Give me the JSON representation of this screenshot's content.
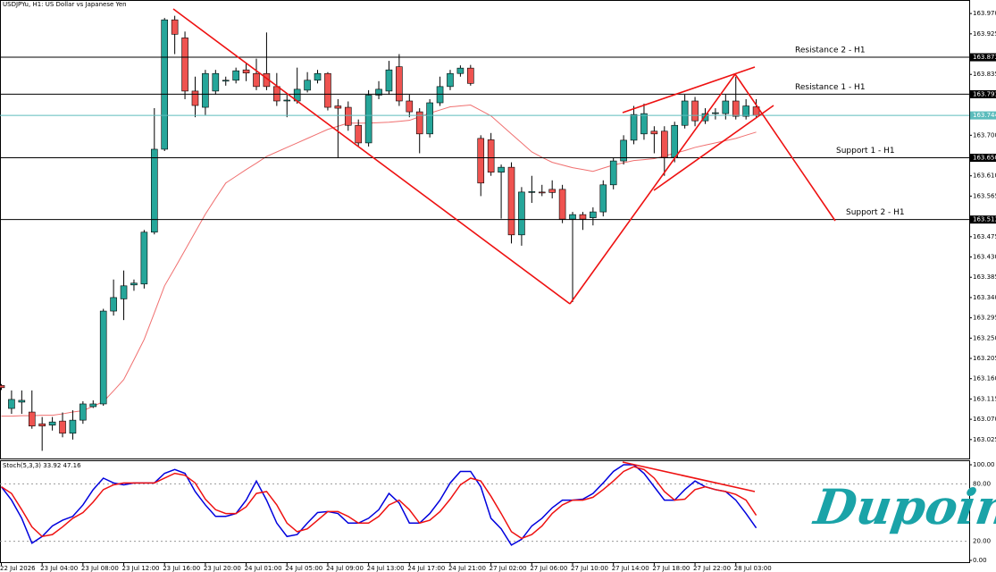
{
  "chart_data": [
    {
      "type": "candlestick",
      "title": "USDJPYu, H1:  US Dollar vs Japanese Yen",
      "categories": [
        "22 Jul 2026",
        null,
        null,
        null,
        "23 Jul 04:00",
        null,
        null,
        null,
        "23 Jul 08:00",
        null,
        null,
        null,
        "23 Jul 12:00",
        null,
        null,
        null,
        "23 Jul 16:00",
        null,
        null,
        null,
        "23 Jul 20:00",
        null,
        null,
        null,
        "24 Jul 01:00",
        null,
        null,
        null,
        "24 Jul 05:00",
        null,
        null,
        null,
        "24 Jul 09:00",
        null,
        null,
        null,
        "24 Jul 13:00",
        null,
        null,
        null,
        "24 Jul 17:00",
        null,
        null,
        null,
        "24 Jul 21:00",
        null,
        null,
        null,
        "27 Jul 02:00",
        null,
        null,
        null,
        "27 Jul 06:00",
        null,
        null,
        null,
        "27 Jul 10:00",
        null,
        null,
        null,
        "27 Jul 14:00",
        null,
        null,
        null,
        "27 Jul 18:00",
        null,
        null,
        null,
        "27 Jul 22:00",
        null,
        null,
        null,
        "28 Jul 03:00",
        null,
        null
      ],
      "open": [
        163.145,
        163.094,
        163.108,
        163.086,
        163.06,
        163.057,
        163.066,
        163.039,
        163.068,
        163.098,
        163.104,
        163.31,
        163.337,
        163.368,
        163.37,
        163.485,
        163.669,
        163.956,
        163.916,
        163.798,
        163.762,
        163.798,
        163.82,
        163.822,
        163.845,
        163.837,
        163.837,
        163.808,
        163.776,
        163.776,
        163.8,
        163.822,
        163.837,
        163.765,
        163.762,
        163.722,
        163.683,
        163.789,
        163.798,
        163.852,
        163.776,
        163.752,
        163.703,
        163.772,
        163.808,
        163.837,
        163.849,
        163.693,
        163.69,
        163.618,
        163.629,
        163.479,
        163.574,
        163.574,
        163.58,
        163.58,
        163.514,
        163.524,
        163.517,
        163.53,
        163.59,
        163.643,
        163.689,
        163.703,
        163.709,
        163.709,
        163.651,
        163.722,
        163.776,
        163.732,
        163.748,
        163.748,
        163.776,
        163.742,
        163.763
      ],
      "high": [
        163.148,
        163.134,
        163.134,
        163.134,
        163.075,
        163.075,
        163.085,
        163.09,
        163.11,
        163.112,
        163.315,
        163.38,
        163.4,
        163.38,
        163.49,
        163.76,
        163.96,
        163.965,
        163.93,
        163.83,
        163.845,
        163.845,
        163.83,
        163.85,
        163.86,
        163.87,
        163.928,
        163.838,
        163.79,
        163.85,
        163.84,
        163.845,
        163.84,
        163.78,
        163.775,
        163.735,
        163.8,
        163.82,
        163.865,
        163.88,
        163.79,
        163.76,
        163.78,
        163.83,
        163.845,
        163.855,
        163.856,
        163.7,
        163.705,
        163.635,
        163.64,
        163.585,
        163.61,
        163.59,
        163.6,
        163.59,
        163.53,
        163.53,
        163.54,
        163.6,
        163.65,
        163.7,
        163.765,
        163.77,
        163.72,
        163.72,
        163.73,
        163.79,
        163.785,
        163.76,
        163.76,
        163.79,
        163.83,
        163.78,
        163.78
      ],
      "low": [
        163.135,
        163.082,
        163.082,
        163.049,
        163.0,
        163.045,
        163.03,
        163.025,
        163.06,
        163.095,
        163.1,
        163.3,
        163.29,
        163.355,
        163.36,
        163.48,
        163.665,
        163.88,
        163.78,
        163.74,
        163.745,
        163.79,
        163.81,
        163.815,
        163.82,
        163.8,
        163.8,
        163.765,
        163.74,
        163.77,
        163.795,
        163.815,
        163.755,
        163.651,
        163.71,
        163.675,
        163.675,
        163.78,
        163.79,
        163.765,
        163.74,
        163.66,
        163.695,
        163.765,
        163.8,
        163.83,
        163.81,
        163.565,
        163.61,
        163.515,
        163.46,
        163.455,
        163.55,
        163.565,
        163.56,
        163.505,
        163.33,
        163.49,
        163.5,
        163.52,
        163.58,
        163.635,
        163.68,
        163.69,
        163.66,
        163.61,
        163.64,
        163.715,
        163.72,
        163.725,
        163.735,
        163.735,
        163.735,
        163.735,
        163.738
      ],
      "close": [
        163.14,
        163.114,
        163.112,
        163.055,
        163.055,
        163.064,
        163.039,
        163.068,
        163.104,
        163.104,
        163.31,
        163.34,
        163.366,
        163.372,
        163.485,
        163.669,
        163.956,
        163.924,
        163.798,
        163.766,
        163.837,
        163.837,
        163.822,
        163.843,
        163.838,
        163.808,
        163.808,
        163.776,
        163.778,
        163.802,
        163.822,
        163.837,
        163.762,
        163.76,
        163.722,
        163.683,
        163.789,
        163.802,
        163.845,
        163.776,
        163.752,
        163.703,
        163.772,
        163.808,
        163.837,
        163.849,
        163.815,
        163.594,
        163.618,
        163.629,
        163.479,
        163.574,
        163.575,
        163.572,
        163.573,
        163.514,
        163.524,
        163.514,
        163.53,
        163.59,
        163.643,
        163.689,
        163.746,
        163.748,
        163.703,
        163.651,
        163.722,
        163.776,
        163.732,
        163.748,
        163.75,
        163.776,
        163.742,
        163.765,
        163.744
      ],
      "up_color": "#26a69a",
      "down_color": "#ef5350",
      "ma": {
        "color": "#f07070",
        "values": [
          163.077,
          163.077,
          163.078,
          163.078,
          163.079,
          163.079,
          163.082,
          163.086,
          163.089,
          163.099,
          163.109,
          163.133,
          163.158,
          163.202,
          163.247,
          163.306,
          163.366,
          163.405,
          163.445,
          163.485,
          163.525,
          163.56,
          163.594,
          163.609,
          163.624,
          163.638,
          163.653,
          163.663,
          163.673,
          163.683,
          163.693,
          163.703,
          163.713,
          163.72,
          163.727,
          163.727,
          163.727,
          163.728,
          163.729,
          163.731,
          163.733,
          163.741,
          163.749,
          163.756,
          163.763,
          163.765,
          163.767,
          163.755,
          163.743,
          163.723,
          163.703,
          163.683,
          163.663,
          163.651,
          163.64,
          163.634,
          163.628,
          163.624,
          163.62,
          163.627,
          163.634,
          163.639,
          163.644,
          163.646,
          163.648,
          163.654,
          163.66,
          163.666,
          163.673,
          163.678,
          163.683,
          163.688,
          163.693,
          163.7,
          163.707
        ]
      },
      "ylim": [
        162.983,
        164.0
      ],
      "yticks": [
        {
          "value": 163.97,
          "label": "163.970"
        },
        163.925,
        163.835,
        {
          "value": 163.7,
          "label": "163.700"
        },
        {
          "value": 163.61,
          "label": "163.610"
        },
        163.565,
        163.475,
        {
          "value": 163.43,
          "label": "163.430"
        },
        163.385,
        {
          "value": 163.34,
          "label": "163.340"
        },
        163.295,
        {
          "value": 163.25,
          "label": "163.250"
        },
        163.205,
        {
          "value": 163.16,
          "label": "163.160"
        },
        163.115,
        {
          "value": 163.07,
          "label": "163.070"
        },
        163.025
      ],
      "levels": [
        {
          "value": 163.873,
          "label": "Resistance 2 - H1",
          "color": "#000000"
        },
        {
          "value": 163.791,
          "label": "Resistance 1 - H1",
          "color": "#000000"
        },
        {
          "value": 163.744,
          "color": "#5cbcbc"
        },
        {
          "value": 163.65,
          "price_label": "163.650",
          "label": "Support 1 - H1",
          "color": "#000000"
        },
        {
          "value": 163.513,
          "label": "Support 2 - H1",
          "color": "#000000"
        }
      ]
    },
    {
      "type": "line",
      "title": "Stoch(5,3,3) 33.92 47.16",
      "series": [
        {
          "color": "#0000dd",
          "values": [
            77,
            63,
            44,
            18,
            25,
            36,
            42,
            46,
            58,
            74,
            86,
            81,
            79,
            81,
            81,
            81,
            91,
            95,
            91,
            72,
            58,
            46,
            46,
            49,
            63,
            83,
            63,
            39,
            25,
            27,
            39,
            50,
            51,
            49,
            39,
            39,
            44,
            53,
            70,
            60,
            39,
            39,
            49,
            63,
            81,
            93,
            93,
            77,
            44,
            33,
            16,
            22,
            36,
            44,
            55,
            63,
            63,
            64,
            70,
            81,
            93,
            100,
            100,
            91,
            77,
            63,
            63,
            74,
            83,
            77,
            74,
            72,
            63,
            49,
            33.92
          ]
        },
        {
          "color": "#ee1111",
          "values": [
            77,
            70,
            53,
            35,
            25,
            27,
            35,
            44,
            50,
            61,
            74,
            79,
            81,
            81,
            81,
            81,
            86,
            91,
            89,
            81,
            64,
            53,
            49,
            49,
            56,
            70,
            72,
            58,
            39,
            30,
            33,
            42,
            51,
            51,
            46,
            39,
            39,
            46,
            58,
            63,
            53,
            39,
            42,
            51,
            64,
            79,
            86,
            83,
            67,
            49,
            30,
            23,
            27,
            36,
            49,
            58,
            63,
            63,
            66,
            74,
            83,
            93,
            98,
            95,
            86,
            72,
            63,
            64,
            74,
            77,
            74,
            72,
            69,
            63,
            47.16
          ]
        }
      ],
      "ylim": [
        0,
        100
      ],
      "yticks": [
        {
          "value": 100,
          "label": "100.00"
        },
        {
          "value": 80,
          "label": "80.00"
        },
        {
          "value": 20,
          "label": "20.00"
        },
        {
          "value": 0,
          "label": "0.00"
        }
      ]
    },
    {
      "type": "logo",
      "text": "Dupoin",
      "color": "#1aa3a8"
    }
  ]
}
